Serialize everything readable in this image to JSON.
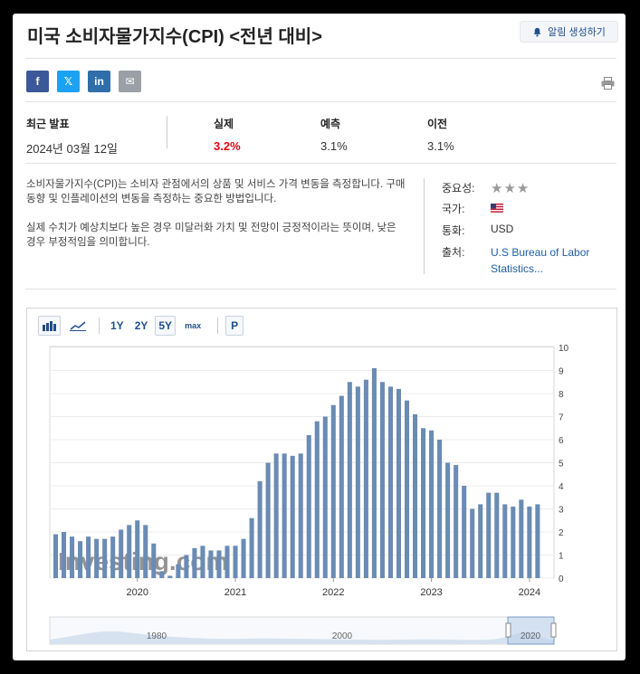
{
  "header": {
    "title": "미국 소비자물가지수(CPI) <전년 대비>",
    "alert_button": "알림 생성하기"
  },
  "share": [
    {
      "name": "facebook",
      "label": "f",
      "color": "#3b5998"
    },
    {
      "name": "x",
      "label": "𝕏",
      "color": "#1da1f2"
    },
    {
      "name": "linkedin",
      "label": "in",
      "color": "#2f6ea8"
    },
    {
      "name": "email",
      "label": "✉",
      "color": "#9aa0a6"
    }
  ],
  "stats": {
    "latest_label": "최근 발표",
    "latest_value": "2024년 03월 12일",
    "actual_label": "실제",
    "actual_value": "3.2%",
    "forecast_label": "예측",
    "forecast_value": "3.1%",
    "previous_label": "이전",
    "previous_value": "3.1%",
    "actual_color": "#e30613"
  },
  "description": {
    "p1": "소비자물가지수(CPI)는 소비자 관점에서의 상품 및 서비스 가격 변동을 측정합니다. 구매 동향 및 인플레이션의 변동을 측정하는 중요한 방법입니다.",
    "p2": "실제 수치가 예상치보다 높은 경우 미달러화 가치 및 전망이 긍정적이라는 뜻이며, 낮은 경우 부정적임을 의미합니다."
  },
  "meta": {
    "importance_label": "중요성:",
    "importance_stars": 3,
    "country_label": "국가:",
    "currency_label": "통화:",
    "currency_value": "USD",
    "source_label": "출처:",
    "source_line1": "U.S Bureau of Labor",
    "source_line2": "Statistics..."
  },
  "toolbar": {
    "ranges": [
      "1Y",
      "2Y",
      "5Y",
      "max"
    ],
    "selected_range": "5Y",
    "p_button": "P"
  },
  "chart_data": {
    "type": "bar",
    "title": "미국 소비자물가지수(CPI) <전년 대비>",
    "ylabel": "%",
    "ylim": [
      0,
      10
    ],
    "yticks": [
      0,
      1,
      2,
      3,
      4,
      5,
      6,
      7,
      8,
      9,
      10
    ],
    "year_labels": [
      "2020",
      "2021",
      "2022",
      "2023",
      "2024"
    ],
    "watermark": "Investing.com",
    "navigator_labels": [
      "1980",
      "2000",
      "2020"
    ],
    "bar_color": "#6a8bb4",
    "dates": [
      "2019-03",
      "2019-04",
      "2019-05",
      "2019-06",
      "2019-07",
      "2019-08",
      "2019-09",
      "2019-10",
      "2019-11",
      "2019-12",
      "2020-01",
      "2020-02",
      "2020-03",
      "2020-04",
      "2020-05",
      "2020-06",
      "2020-07",
      "2020-08",
      "2020-09",
      "2020-10",
      "2020-11",
      "2020-12",
      "2021-01",
      "2021-02",
      "2021-03",
      "2021-04",
      "2021-05",
      "2021-06",
      "2021-07",
      "2021-08",
      "2021-09",
      "2021-10",
      "2021-11",
      "2021-12",
      "2022-01",
      "2022-02",
      "2022-03",
      "2022-04",
      "2022-05",
      "2022-06",
      "2022-07",
      "2022-08",
      "2022-09",
      "2022-10",
      "2022-11",
      "2022-12",
      "2023-01",
      "2023-02",
      "2023-03",
      "2023-04",
      "2023-05",
      "2023-06",
      "2023-07",
      "2023-08",
      "2023-09",
      "2023-10",
      "2023-11",
      "2023-12",
      "2024-01",
      "2024-02"
    ],
    "values": [
      1.9,
      2.0,
      1.8,
      1.6,
      1.8,
      1.7,
      1.7,
      1.8,
      2.1,
      2.3,
      2.5,
      2.3,
      1.5,
      0.3,
      0.1,
      0.6,
      1.0,
      1.3,
      1.4,
      1.2,
      1.2,
      1.4,
      1.4,
      1.7,
      2.6,
      4.2,
      5.0,
      5.4,
      5.4,
      5.3,
      5.4,
      6.2,
      6.8,
      7.0,
      7.5,
      7.9,
      8.5,
      8.3,
      8.6,
      9.1,
      8.5,
      8.3,
      8.2,
      7.7,
      7.1,
      6.5,
      6.4,
      6.0,
      5.0,
      4.9,
      4.0,
      3.0,
      3.2,
      3.7,
      3.7,
      3.2,
      3.1,
      3.4,
      3.1,
      3.2
    ]
  }
}
